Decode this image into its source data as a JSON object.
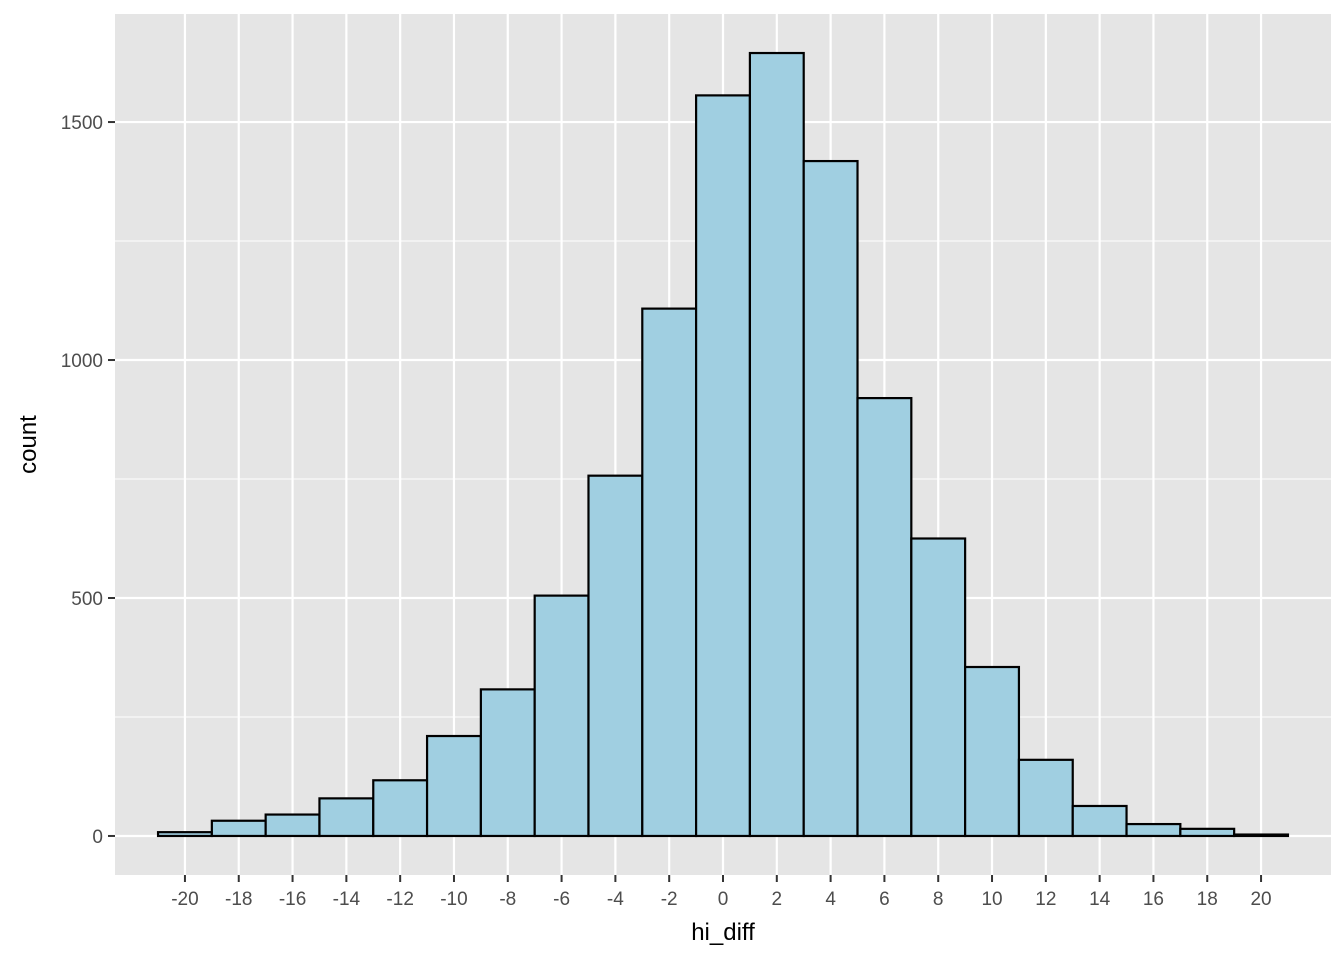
{
  "chart_data": {
    "type": "bar",
    "subtype": "histogram",
    "title": "",
    "xlabel": "hi_diff",
    "ylabel": "count",
    "bin_width": 2,
    "bins": [
      {
        "x0": -21,
        "x1": -19,
        "count": 8
      },
      {
        "x0": -19,
        "x1": -17,
        "count": 32
      },
      {
        "x0": -17,
        "x1": -15,
        "count": 45
      },
      {
        "x0": -15,
        "x1": -13,
        "count": 79
      },
      {
        "x0": -13,
        "x1": -11,
        "count": 117
      },
      {
        "x0": -11,
        "x1": -9,
        "count": 210
      },
      {
        "x0": -9,
        "x1": -7,
        "count": 308
      },
      {
        "x0": -7,
        "x1": -5,
        "count": 505
      },
      {
        "x0": -5,
        "x1": -3,
        "count": 757
      },
      {
        "x0": -3,
        "x1": -1,
        "count": 1108
      },
      {
        "x0": -1,
        "x1": 1,
        "count": 1556
      },
      {
        "x0": 1,
        "x1": 3,
        "count": 1645
      },
      {
        "x0": 3,
        "x1": 5,
        "count": 1418
      },
      {
        "x0": 5,
        "x1": 7,
        "count": 920
      },
      {
        "x0": 7,
        "x1": 9,
        "count": 625
      },
      {
        "x0": 9,
        "x1": 11,
        "count": 355
      },
      {
        "x0": 11,
        "x1": 13,
        "count": 160
      },
      {
        "x0": 13,
        "x1": 15,
        "count": 63
      },
      {
        "x0": 15,
        "x1": 17,
        "count": 25
      },
      {
        "x0": 17,
        "x1": 19,
        "count": 15
      },
      {
        "x0": 19,
        "x1": 21,
        "count": 3
      }
    ],
    "xlim": [
      -22.6,
      22.6
    ],
    "ylim": [
      -82,
      1727
    ],
    "x_ticks": [
      -20,
      -18,
      -16,
      -14,
      -12,
      -10,
      -8,
      -6,
      -4,
      -2,
      0,
      2,
      4,
      6,
      8,
      10,
      12,
      14,
      16,
      18,
      20
    ],
    "x_tick_labels": [
      "-20",
      "-18",
      "-16",
      "-14",
      "-12",
      "-10",
      "-8",
      "-6",
      "-4",
      "-2",
      "0",
      "2",
      "4",
      "6",
      "8",
      "10",
      "12",
      "14",
      "16",
      "18",
      "20"
    ],
    "y_ticks": [
      0,
      500,
      1000,
      1500
    ],
    "y_tick_labels": [
      "0",
      "500",
      "1000",
      "1500"
    ],
    "grid": true,
    "legend": "none",
    "colors": {
      "bar_fill": "#A0CFE1",
      "bar_stroke": "#000000",
      "panel_background": "#E5E5E5",
      "grid_major": "#FFFFFF"
    }
  }
}
